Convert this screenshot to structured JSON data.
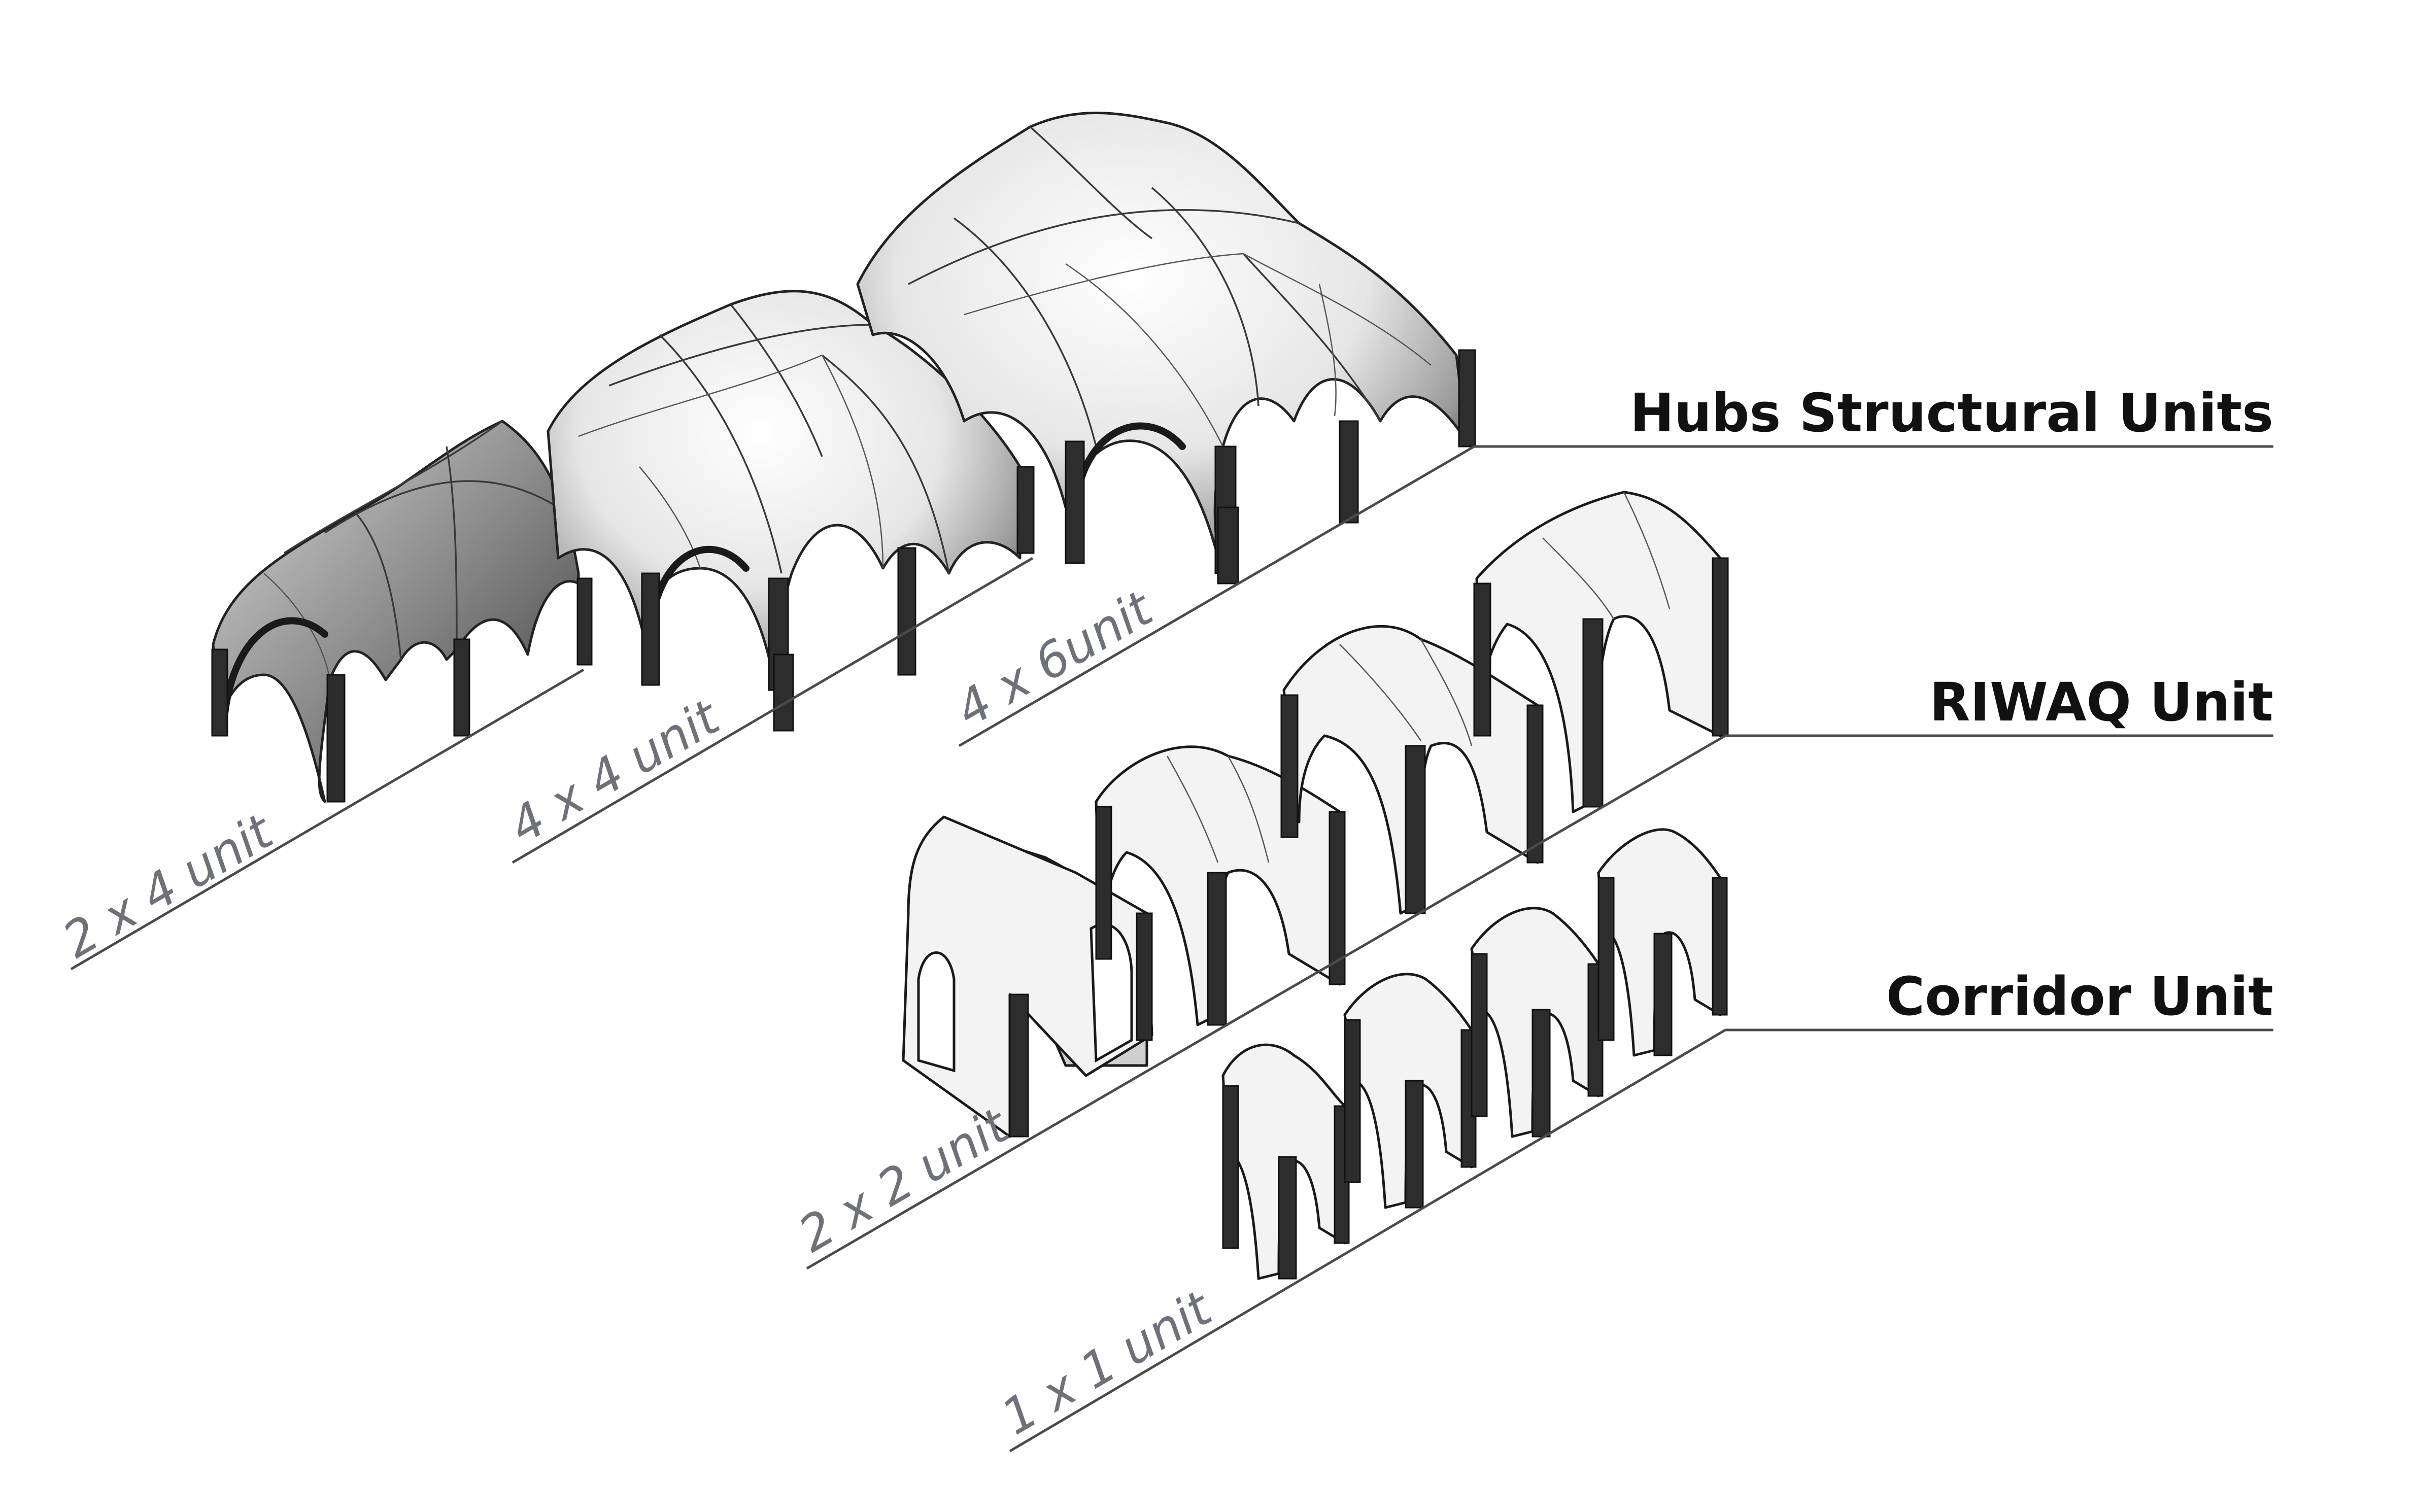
{
  "categories": {
    "hubs": {
      "label": "Hubs Structural Units"
    },
    "riwaq": {
      "label": "RIWAQ Unit"
    },
    "corridor": {
      "label": "Corridor Unit"
    }
  },
  "sizes": {
    "hub_small": "2 x 4 unit",
    "hub_medium": "4 x 4  unit",
    "hub_large": "4 x 6unit",
    "riwaq": "2 x 2 unit",
    "corridor": "1 x 1 unit"
  },
  "colors": {
    "label_dark": "#111111",
    "label_grey": "#6e717a",
    "line": "#4a4a4a"
  }
}
